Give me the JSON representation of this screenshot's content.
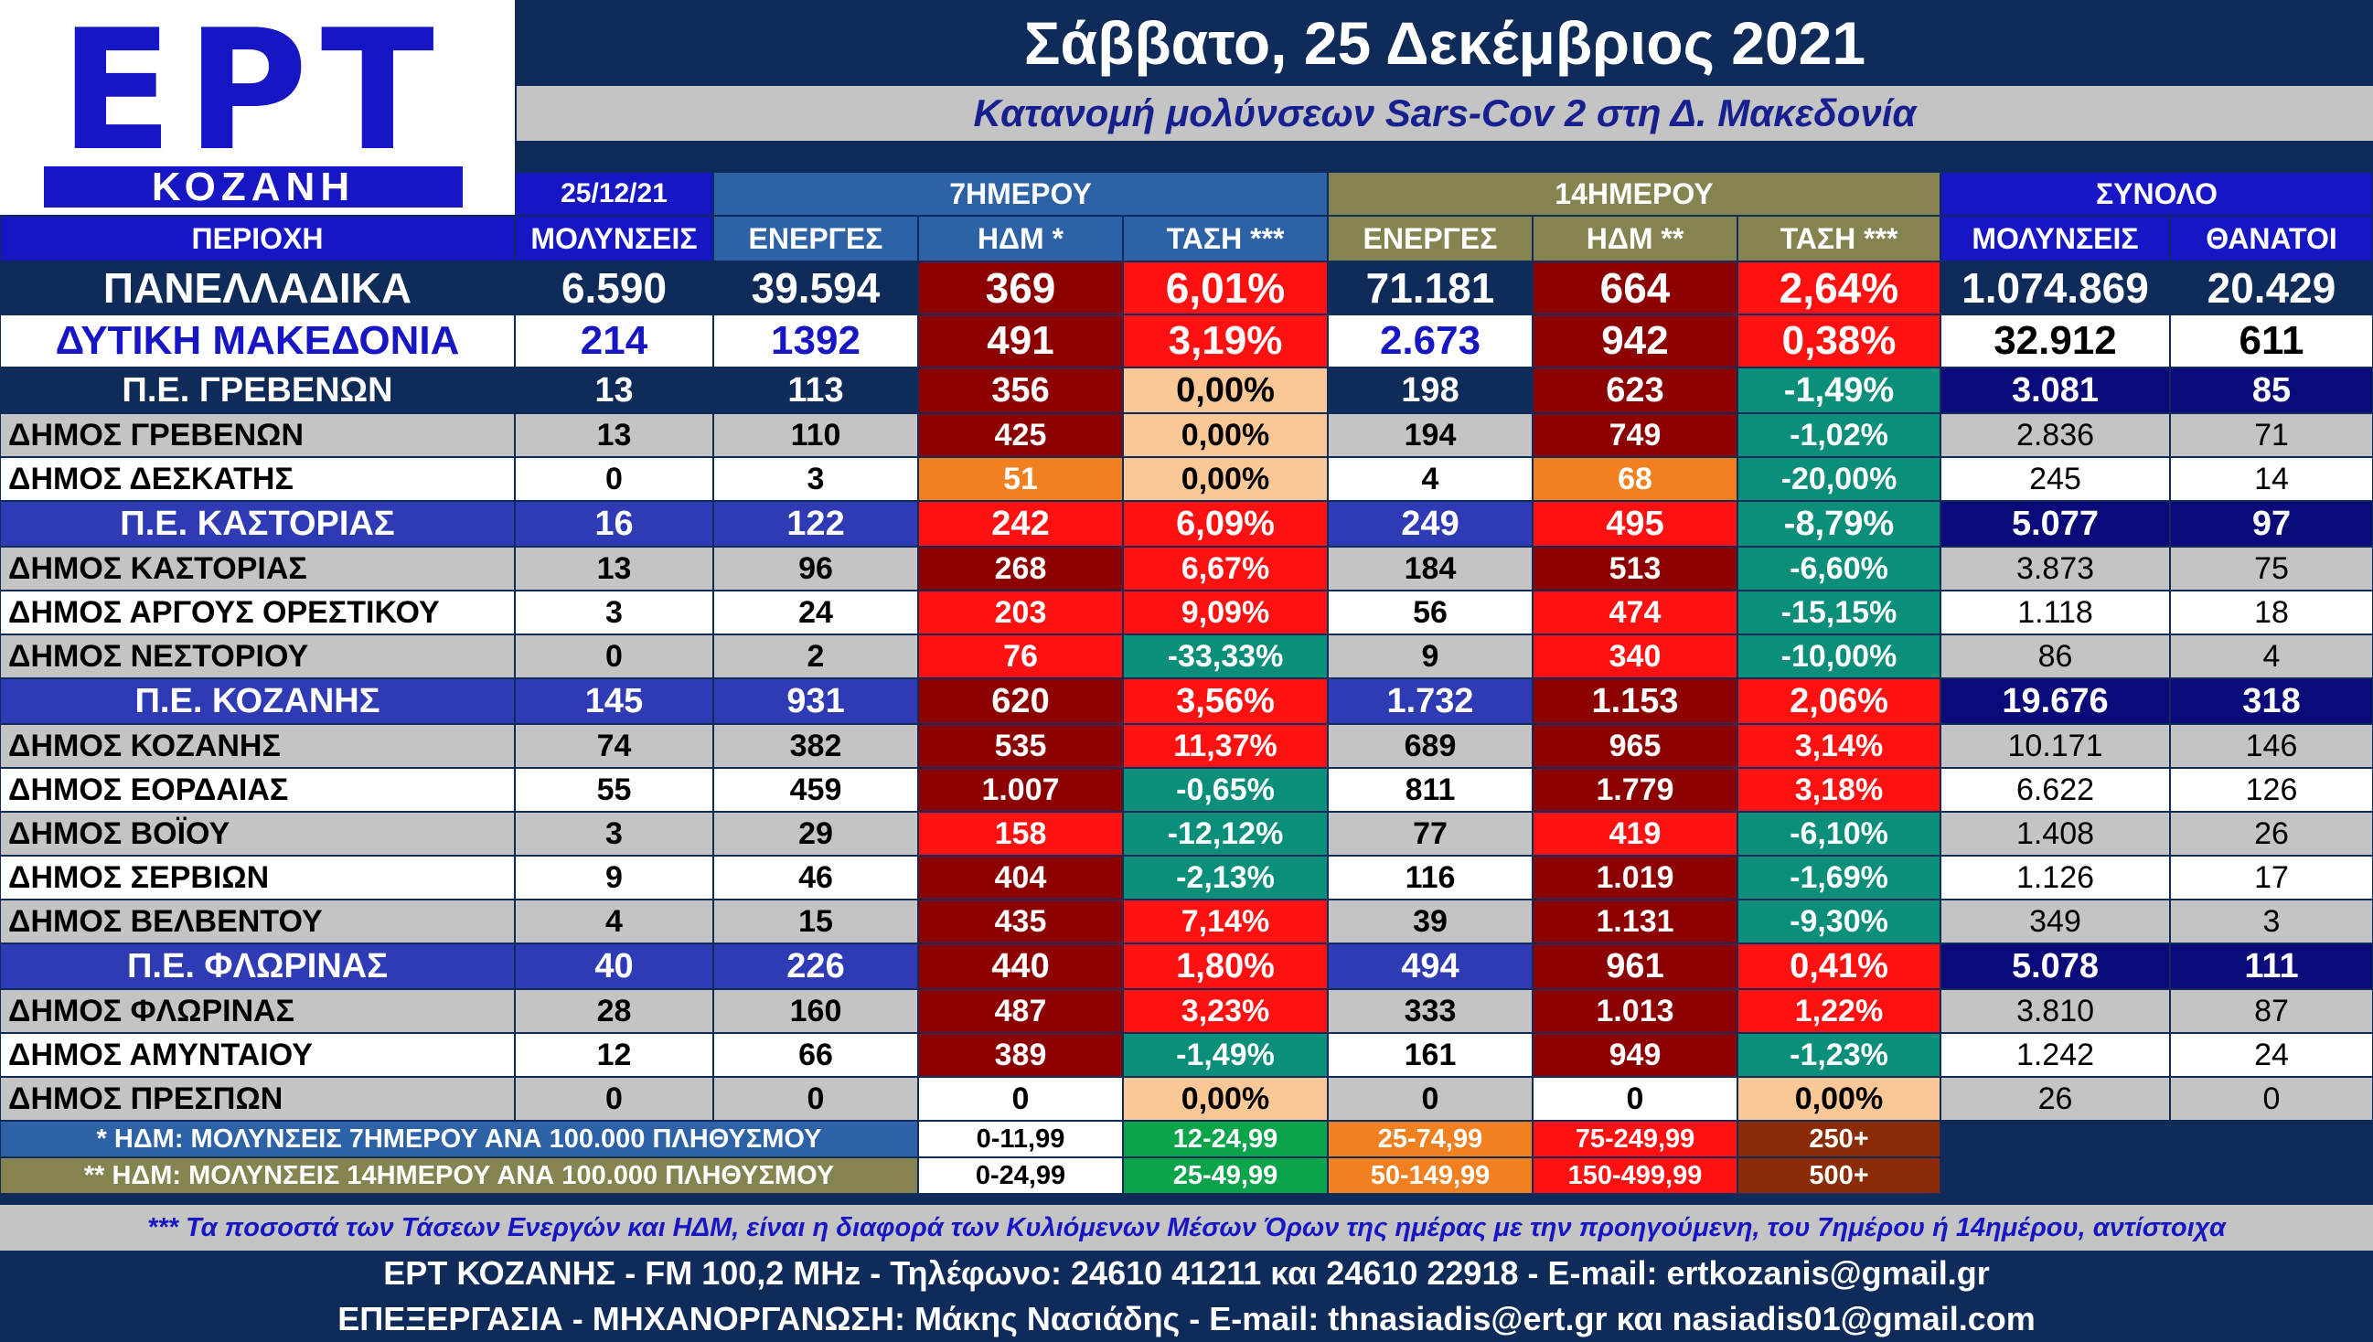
{
  "logo": {
    "ert": "ΕΡΤ",
    "city": "ΚΟΖΑΝΗ"
  },
  "header": {
    "date": "Σάββατο, 25 Δεκέμβριος 2021",
    "subtitle": "Κατανομή μολύνσεων Sars-Cov 2 στη Δ. Μακεδονία"
  },
  "groups": {
    "date": "25/12/21",
    "week": "7ΗΜΕΡΟΥ",
    "fortnight": "14ΗΜΕΡΟΥ",
    "total": "ΣΥΝΟΛΟ"
  },
  "columns": [
    "ΠΕΡΙΟΧΗ",
    "ΜΟΛΥΝΣΕΙΣ",
    "ΕΝΕΡΓΕΣ",
    "ΗΔΜ *",
    "ΤΑΣΗ ***",
    "ΕΝΕΡΓΕΣ",
    "ΗΔΜ **",
    "ΤΑΣΗ ***",
    "ΜΟΛΥΝΣΕΙΣ",
    "ΘΑΝΑΤΟΙ"
  ],
  "rows": [
    {
      "type": "national",
      "name": "ΠΑΝΕΛΛΑΔΙΚΑ",
      "v": [
        "6.590",
        "39.594",
        "369",
        "6,01%",
        "71.181",
        "664",
        "2,64%",
        "1.074.869",
        "20.429"
      ]
    },
    {
      "type": "macro",
      "name": "ΔΥΤΙΚΗ ΜΑΚΕΔΟΝΙΑ",
      "v": [
        "214",
        "1392",
        "491",
        "3,19%",
        "2.673",
        "942",
        "0,38%",
        "32.912",
        "611"
      ]
    },
    {
      "type": "unit-a",
      "name": "Π.Ε. ΓΡΕΒΕΝΩΝ",
      "v": [
        "13",
        "113",
        "356",
        "0,00%",
        "198",
        "623",
        "-1,49%",
        "3.081",
        "85"
      ]
    },
    {
      "type": "muni-g",
      "name": "ΔΗΜΟΣ ΓΡΕΒΕΝΩΝ",
      "v": [
        "13",
        "110",
        "425",
        "0,00%",
        "194",
        "749",
        "-1,02%",
        "2.836",
        "71"
      ]
    },
    {
      "type": "muni-w",
      "name": "ΔΗΜΟΣ ΔΕΣΚΑΤΗΣ",
      "v": [
        "0",
        "3",
        "51",
        "0,00%",
        "4",
        "68",
        "-20,00%",
        "245",
        "14"
      ]
    },
    {
      "type": "unit-b",
      "name": "Π.Ε. ΚΑΣΤΟΡΙΑΣ",
      "v": [
        "16",
        "122",
        "242",
        "6,09%",
        "249",
        "495",
        "-8,79%",
        "5.077",
        "97"
      ]
    },
    {
      "type": "muni-g",
      "name": "ΔΗΜΟΣ ΚΑΣΤΟΡΙΑΣ",
      "v": [
        "13",
        "96",
        "268",
        "6,67%",
        "184",
        "513",
        "-6,60%",
        "3.873",
        "75"
      ]
    },
    {
      "type": "muni-w",
      "name": "ΔΗΜΟΣ ΑΡΓΟΥΣ ΟΡΕΣΤΙΚΟΥ",
      "v": [
        "3",
        "24",
        "203",
        "9,09%",
        "56",
        "474",
        "-15,15%",
        "1.118",
        "18"
      ]
    },
    {
      "type": "muni-g",
      "name": "ΔΗΜΟΣ ΝΕΣΤΟΡΙΟΥ",
      "v": [
        "0",
        "2",
        "76",
        "-33,33%",
        "9",
        "340",
        "-10,00%",
        "86",
        "4"
      ]
    },
    {
      "type": "unit-b",
      "name": "Π.Ε. ΚΟΖΑΝΗΣ",
      "v": [
        "145",
        "931",
        "620",
        "3,56%",
        "1.732",
        "1.153",
        "2,06%",
        "19.676",
        "318"
      ]
    },
    {
      "type": "muni-g",
      "name": "ΔΗΜΟΣ ΚΟΖΑΝΗΣ",
      "v": [
        "74",
        "382",
        "535",
        "11,37%",
        "689",
        "965",
        "3,14%",
        "10.171",
        "146"
      ]
    },
    {
      "type": "muni-w",
      "name": "ΔΗΜΟΣ ΕΟΡΔΑΙΑΣ",
      "v": [
        "55",
        "459",
        "1.007",
        "-0,65%",
        "811",
        "1.779",
        "3,18%",
        "6.622",
        "126"
      ]
    },
    {
      "type": "muni-g",
      "name": "ΔΗΜΟΣ ΒΟΪΟΥ",
      "v": [
        "3",
        "29",
        "158",
        "-12,12%",
        "77",
        "419",
        "-6,10%",
        "1.408",
        "26"
      ]
    },
    {
      "type": "muni-w",
      "name": "ΔΗΜΟΣ ΣΕΡΒΙΩΝ",
      "v": [
        "9",
        "46",
        "404",
        "-2,13%",
        "116",
        "1.019",
        "-1,69%",
        "1.126",
        "17"
      ]
    },
    {
      "type": "muni-g",
      "name": "ΔΗΜΟΣ ΒΕΛΒΕΝΤΟΥ",
      "v": [
        "4",
        "15",
        "435",
        "7,14%",
        "39",
        "1.131",
        "-9,30%",
        "349",
        "3"
      ]
    },
    {
      "type": "unit-b",
      "name": "Π.Ε. ΦΛΩΡΙΝΑΣ",
      "v": [
        "40",
        "226",
        "440",
        "1,80%",
        "494",
        "961",
        "0,41%",
        "5.078",
        "111"
      ]
    },
    {
      "type": "muni-g",
      "name": "ΔΗΜΟΣ ΦΛΩΡΙΝΑΣ",
      "v": [
        "28",
        "160",
        "487",
        "3,23%",
        "333",
        "1.013",
        "1,22%",
        "3.810",
        "87"
      ]
    },
    {
      "type": "muni-w",
      "name": "ΔΗΜΟΣ ΑΜΥΝΤΑΙΟΥ",
      "v": [
        "12",
        "66",
        "389",
        "-1,49%",
        "161",
        "949",
        "-1,23%",
        "1.242",
        "24"
      ]
    },
    {
      "type": "muni-g",
      "name": "ΔΗΜΟΣ ΠΡΕΣΠΩΝ",
      "v": [
        "0",
        "0",
        "0",
        "0,00%",
        "0",
        "0",
        "0,00%",
        "26",
        "0"
      ]
    }
  ],
  "legend": [
    {
      "label": "* ΗΔΜ: ΜΟΛΥΝΣΕΙΣ 7ΗΜΕΡΟΥ ΑΝΑ 100.000 ΠΛΗΘΥΣΜΟΥ",
      "ranges": [
        "0-11,99",
        "12-24,99",
        "25-74,99",
        "75-249,99",
        "250+"
      ]
    },
    {
      "label": "** ΗΔΜ: ΜΟΛΥΝΣΕΙΣ 14ΗΜΕΡΟΥ ΑΝΑ 100.000 ΠΛΗΘΥΣΜΟΥ",
      "ranges": [
        "0-24,99",
        "25-49,99",
        "50-149,99",
        "150-499,99",
        "500+"
      ]
    }
  ],
  "note": "*** Τα ποσοστά των Τάσεων Ενεργών και ΗΔΜ, είναι η διαφορά των Κυλιόμενων Μέσων Όρων της ημέρας με την προηγούμενη, του 7ημέρου ή 14ημέρου, αντίστοιχα",
  "footer": {
    "line1": "ΕΡΤ ΚΟΖΑΝΗΣ - FM 100,2 MHz - Τηλέφωνο:  24610 41211 και 24610 22918 - E-mail: ertkozanis@gmail.gr",
    "line2": "ΕΠΕΞΕΡΓΑΣΙΑ  -  ΜΗΧΑΝΟΡΓΑΝΩΣΗ: Μάκης Νασιάδης  -   E-mail: thnasiadis@ert.gr και nasiadis01@gmail.com"
  },
  "colors": {
    "navy": "#0e2b5a",
    "blue": "#1616c4",
    "royal": "#2e3bb4",
    "week_blue": "#2d62a6",
    "olive": "#858450",
    "grey": "#c4c4c4",
    "white": "#ffffff",
    "dark_red": "#8c0000",
    "red": "#ff1111",
    "orange": "#f08020",
    "peach": "#fac797",
    "teal": "#0c8f7a",
    "green": "#0ca44a",
    "brown": "#8a2c06",
    "total_unit": "#0a0a7a"
  }
}
